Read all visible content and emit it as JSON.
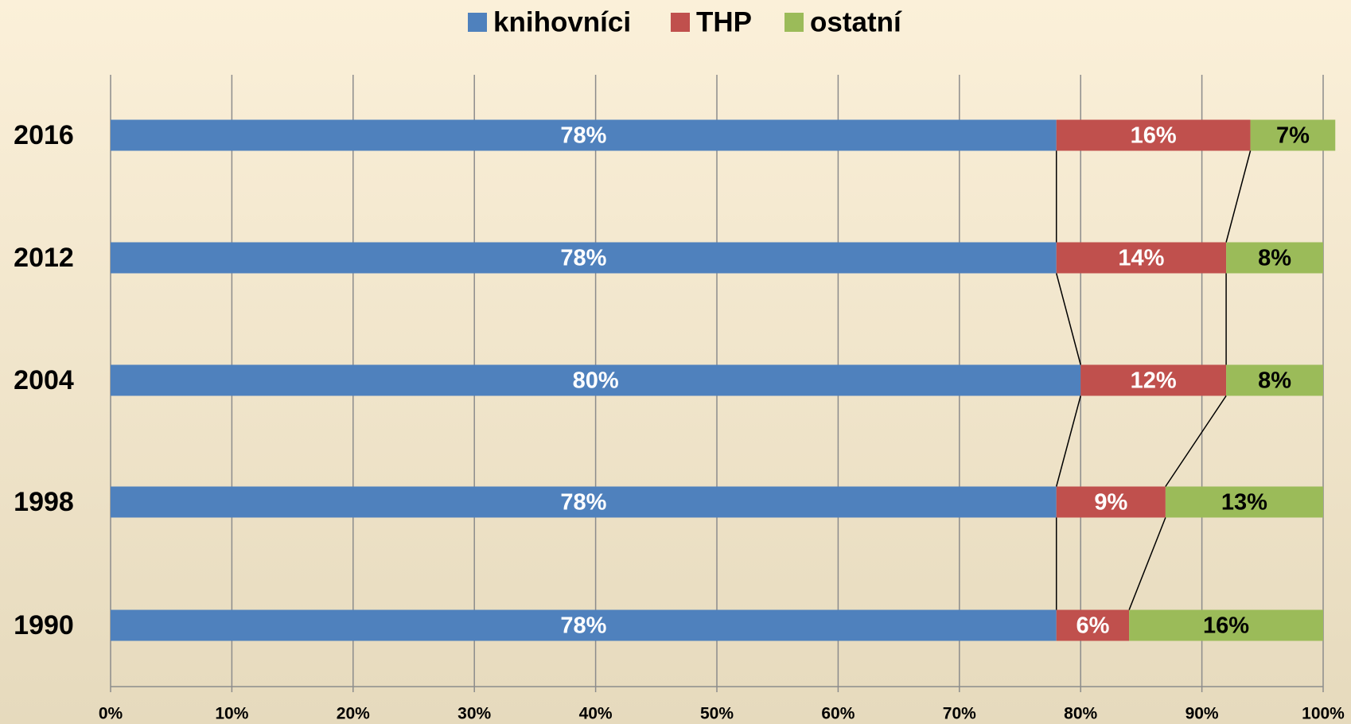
{
  "chart_data": {
    "type": "stacked-bar-horizontal",
    "categories": [
      "2016",
      "2012",
      "2004",
      "1998",
      "1990"
    ],
    "series": [
      {
        "name": "knihovníci",
        "color": "#4f81bd",
        "label_color": "#ffffff",
        "values": [
          78,
          78,
          80,
          78,
          78
        ],
        "value_labels": [
          "78%",
          "78%",
          "80%",
          "78%",
          "78%"
        ]
      },
      {
        "name": "THP",
        "color": "#c0504d",
        "label_color": "#ffffff",
        "values": [
          16,
          14,
          12,
          9,
          6
        ],
        "value_labels": [
          "16%",
          "14%",
          "12%",
          "9%",
          "6%"
        ]
      },
      {
        "name": "ostatní",
        "color": "#9bbb59",
        "label_color": "#000000",
        "values": [
          7,
          8,
          8,
          13,
          16
        ],
        "value_labels": [
          "7%",
          "8%",
          "8%",
          "13%",
          "16%"
        ]
      }
    ],
    "xlim": [
      0,
      100
    ],
    "xticks": [
      {
        "value": 0,
        "label": "0%"
      },
      {
        "value": 10,
        "label": "10%"
      },
      {
        "value": 20,
        "label": "20%"
      },
      {
        "value": 30,
        "label": "30%"
      },
      {
        "value": 40,
        "label": "40%"
      },
      {
        "value": 50,
        "label": "50%"
      },
      {
        "value": 60,
        "label": "60%"
      },
      {
        "value": 70,
        "label": "70%"
      },
      {
        "value": 80,
        "label": "80%"
      },
      {
        "value": 90,
        "label": "90%"
      },
      {
        "value": 100,
        "label": "100%"
      }
    ],
    "grid": true,
    "legend": "top"
  }
}
